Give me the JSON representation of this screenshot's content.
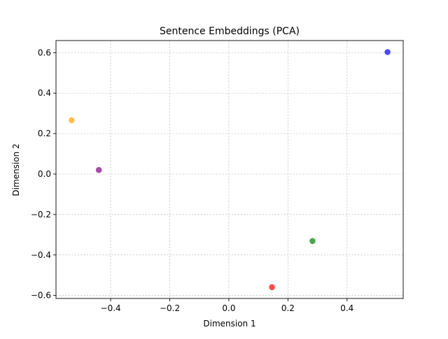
{
  "chart_data": {
    "type": "scatter",
    "title": "Sentence Embeddings (PCA)",
    "xlabel": "Dimension 1",
    "ylabel": "Dimension 2",
    "xlim": [
      -0.585,
      0.59
    ],
    "ylim": [
      -0.615,
      0.66
    ],
    "grid": true,
    "xticks": [
      -0.4,
      -0.2,
      0.0,
      0.2,
      0.4
    ],
    "xtick_labels": [
      "−0.4",
      "−0.2",
      "0.0",
      "0.2",
      "0.4"
    ],
    "yticks": [
      -0.6,
      -0.4,
      -0.2,
      0.0,
      0.2,
      0.4,
      0.6
    ],
    "ytick_labels": [
      "−0.6",
      "−0.4",
      "−0.2",
      "0.0",
      "0.2",
      "0.4",
      "0.6"
    ],
    "points": [
      {
        "x": 0.537,
        "y": 0.603,
        "color": "#0000ff"
      },
      {
        "x": -0.532,
        "y": 0.266,
        "color": "#ffa500"
      },
      {
        "x": -0.44,
        "y": 0.02,
        "color": "#800080"
      },
      {
        "x": 0.283,
        "y": -0.331,
        "color": "#008000"
      },
      {
        "x": 0.146,
        "y": -0.559,
        "color": "#ff0000"
      }
    ]
  }
}
